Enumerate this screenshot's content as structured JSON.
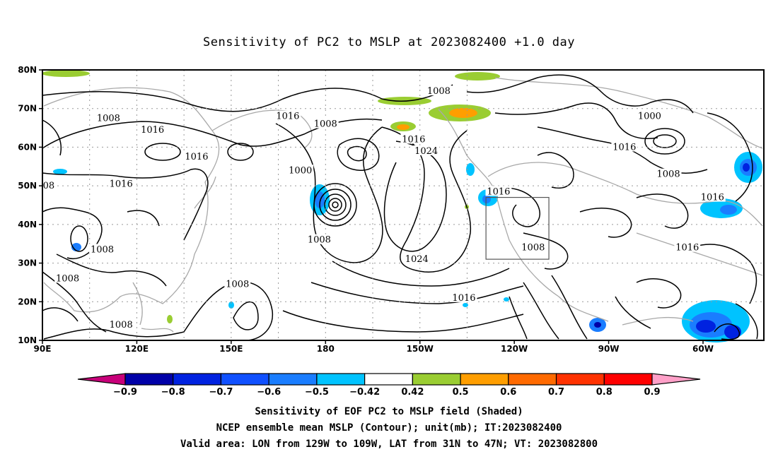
{
  "title": "Sensitivity of PC2 to MSLP at 2023082400 +1.0 day",
  "axes": {
    "lat_labels": [
      "10N",
      "20N",
      "30N",
      "40N",
      "50N",
      "60N",
      "70N",
      "80N"
    ],
    "lon_labels": [
      "90E",
      "120E",
      "150E",
      "180",
      "150W",
      "120W",
      "90W",
      "60W"
    ]
  },
  "contour_labels": [
    {
      "text": "1008",
      "lon": 111,
      "lat": 67.5
    },
    {
      "text": "1016",
      "lon": 125,
      "lat": 64.5
    },
    {
      "text": "1016",
      "lon": 139,
      "lat": 57.5
    },
    {
      "text": "1016",
      "lon": 115,
      "lat": 50.5
    },
    {
      "text": "1016",
      "lon": 168,
      "lat": 68
    },
    {
      "text": "1008",
      "lon": 180,
      "lat": 66
    },
    {
      "text": "1000",
      "lon": 172,
      "lat": 54
    },
    {
      "text": "1008",
      "lon": 178,
      "lat": 36
    },
    {
      "text": "1016",
      "lon": -152,
      "lat": 62
    },
    {
      "text": "1024",
      "lon": -148,
      "lat": 59
    },
    {
      "text": "1008",
      "lon": -144,
      "lat": 74.5
    },
    {
      "text": "1000",
      "lon": -77,
      "lat": 68
    },
    {
      "text": "1016",
      "lon": -85,
      "lat": 60
    },
    {
      "text": "1008",
      "lon": -71,
      "lat": 53
    },
    {
      "text": "1016",
      "lon": -57,
      "lat": 47
    },
    {
      "text": "1016",
      "lon": -65,
      "lat": 34
    },
    {
      "text": "1016",
      "lon": -125,
      "lat": 48.5
    },
    {
      "text": "1008",
      "lon": -114,
      "lat": 34
    },
    {
      "text": "1024",
      "lon": -151,
      "lat": 31
    },
    {
      "text": "1016",
      "lon": -136,
      "lat": 21
    },
    {
      "text": "1008",
      "lon": 152,
      "lat": 24.5
    },
    {
      "text": "1008",
      "lon": 109,
      "lat": 33.5
    },
    {
      "text": "1008",
      "lon": 98,
      "lat": 26
    },
    {
      "text": "1008",
      "lon": 115,
      "lat": 14
    },
    {
      "text": "08",
      "lon": 92,
      "lat": 50
    }
  ],
  "valid_box": {
    "lon_min": -129,
    "lon_max": -109,
    "lat_min": 31,
    "lat_max": 47
  },
  "colorbar": {
    "labels": [
      "-0.9",
      "-0.8",
      "-0.7",
      "-0.6",
      "-0.5",
      "-0.42",
      "0.42",
      "0.5",
      "0.6",
      "0.7",
      "0.8",
      "0.9"
    ],
    "colors": [
      "#c8007a",
      "#0000a8",
      "#0022e0",
      "#1050ff",
      "#1a7dff",
      "#00c3ff",
      "#ffffff",
      "#9acd32",
      "#ff9e00",
      "#ff6a00",
      "#ff3200",
      "#ff0000",
      "#ffa0c8"
    ]
  },
  "captions": [
    "Sensitivity of EOF PC2 to MSLP field (Shaded)",
    "NCEP ensemble mean MSLP (Contour); unit(mb); IT:2023082400",
    "Valid area: LON from 129W to 109W, LAT from 31N to 47N; VT: 2023082800"
  ]
}
